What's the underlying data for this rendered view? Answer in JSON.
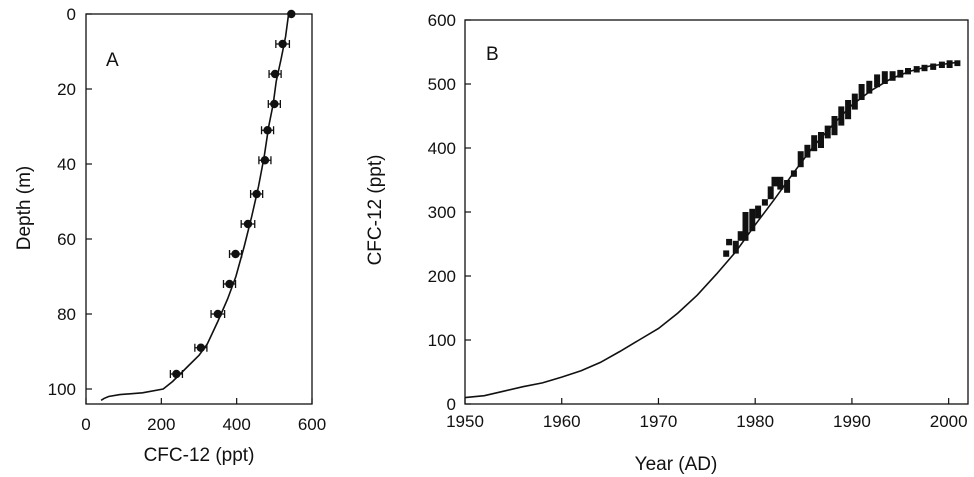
{
  "chart_data": [
    {
      "panel_label": "A",
      "type": "scatter",
      "xlabel": "CFC-12 (ppt)",
      "ylabel": "Depth (m)",
      "xlim": [
        0,
        600
      ],
      "ylim": [
        104,
        0
      ],
      "y_inverted": true,
      "xticks": [
        0,
        200,
        400,
        600
      ],
      "yticks": [
        0,
        20,
        40,
        60,
        80,
        100
      ],
      "grid": false,
      "series": [
        {
          "style": "points-with-horizontal-error-bars",
          "points": [
            {
              "x": 545,
              "y": 0,
              "err": 0
            },
            {
              "x": 522,
              "y": 8,
              "err": 18
            },
            {
              "x": 502,
              "y": 16,
              "err": 16
            },
            {
              "x": 500,
              "y": 24,
              "err": 16
            },
            {
              "x": 482,
              "y": 31,
              "err": 16
            },
            {
              "x": 475,
              "y": 39,
              "err": 16
            },
            {
              "x": 453,
              "y": 48,
              "err": 16
            },
            {
              "x": 430,
              "y": 56,
              "err": 18
            },
            {
              "x": 397,
              "y": 64,
              "err": 16
            },
            {
              "x": 381,
              "y": 72,
              "err": 16
            },
            {
              "x": 350,
              "y": 80,
              "err": 18
            },
            {
              "x": 305,
              "y": 89,
              "err": 16
            },
            {
              "x": 240,
              "y": 96,
              "err": 16
            }
          ]
        },
        {
          "style": "line",
          "points": [
            [
              538,
              0
            ],
            [
              530,
              6
            ],
            [
              518,
              12
            ],
            [
              505,
              18
            ],
            [
              497,
              24
            ],
            [
              485,
              30
            ],
            [
              473,
              38
            ],
            [
              458,
              46
            ],
            [
              440,
              54
            ],
            [
              420,
              62
            ],
            [
              398,
              70
            ],
            [
              376,
              76
            ],
            [
              350,
              82
            ],
            [
              322,
              88
            ],
            [
              300,
              91
            ],
            [
              270,
              94
            ],
            [
              250,
              96
            ],
            [
              230,
              98
            ],
            [
              205,
              100
            ],
            [
              150,
              101
            ],
            [
              90,
              101.5
            ],
            [
              60,
              102
            ],
            [
              48,
              102.5
            ],
            [
              40,
              103
            ]
          ]
        }
      ]
    },
    {
      "panel_label": "B",
      "type": "line",
      "xlabel": "Year (AD)",
      "ylabel": "CFC-12 (ppt)",
      "xlim": [
        1950,
        2002
      ],
      "ylim": [
        0,
        600
      ],
      "xticks": [
        1950,
        1960,
        1970,
        1980,
        1990,
        2000
      ],
      "yticks": [
        0,
        100,
        200,
        300,
        400,
        500,
        600
      ],
      "grid": false,
      "series": [
        {
          "style": "line",
          "points": [
            [
              1950,
              10
            ],
            [
              1952,
              13
            ],
            [
              1954,
              20
            ],
            [
              1956,
              27
            ],
            [
              1958,
              33
            ],
            [
              1960,
              42
            ],
            [
              1962,
              52
            ],
            [
              1964,
              65
            ],
            [
              1966,
              82
            ],
            [
              1968,
              100
            ],
            [
              1970,
              118
            ],
            [
              1972,
              142
            ],
            [
              1974,
              170
            ],
            [
              1976,
              203
            ],
            [
              1978,
              238
            ],
            [
              1980,
              280
            ],
            [
              1982,
              320
            ],
            [
              1984,
              362
            ],
            [
              1986,
              402
            ],
            [
              1988,
              436
            ],
            [
              1990,
              467
            ],
            [
              1992,
              490
            ],
            [
              1994,
              508
            ],
            [
              1996,
              520
            ],
            [
              1998,
              528
            ],
            [
              2000,
              532
            ],
            [
              2001,
              534
            ]
          ]
        },
        {
          "style": "vertical-range-bars",
          "bars": [
            [
              1977.0,
              230,
              240
            ],
            [
              1977.3,
              248,
              258
            ],
            [
              1978.0,
              235,
              255
            ],
            [
              1978.5,
              255,
              270
            ],
            [
              1979.0,
              255,
              300
            ],
            [
              1979.7,
              270,
              305
            ],
            [
              1980.3,
              290,
              310
            ],
            [
              1981.0,
              310,
              320
            ],
            [
              1981.6,
              320,
              340
            ],
            [
              1982.0,
              340,
              355
            ],
            [
              1982.6,
              335,
              355
            ],
            [
              1983.3,
              330,
              350
            ],
            [
              1984.0,
              355,
              365
            ],
            [
              1984.7,
              370,
              395
            ],
            [
              1985.4,
              385,
              405
            ],
            [
              1986.1,
              395,
              420
            ],
            [
              1986.8,
              400,
              425
            ],
            [
              1987.5,
              415,
              435
            ],
            [
              1988.2,
              420,
              450
            ],
            [
              1988.9,
              435,
              465
            ],
            [
              1989.6,
              445,
              475
            ],
            [
              1990.3,
              460,
              485
            ],
            [
              1991.0,
              475,
              500
            ],
            [
              1991.8,
              485,
              505
            ],
            [
              1992.6,
              495,
              515
            ],
            [
              1993.4,
              500,
              520
            ],
            [
              1994.2,
              505,
              520
            ],
            [
              1995.0,
              510,
              522
            ],
            [
              1995.8,
              515,
              525
            ],
            [
              1996.7,
              518,
              528
            ],
            [
              1997.5,
              520,
              530
            ],
            [
              1998.4,
              522,
              532
            ],
            [
              1999.3,
              525,
              535
            ],
            [
              2000.1,
              525,
              537
            ],
            [
              2000.9,
              528,
              537
            ]
          ]
        }
      ]
    }
  ]
}
